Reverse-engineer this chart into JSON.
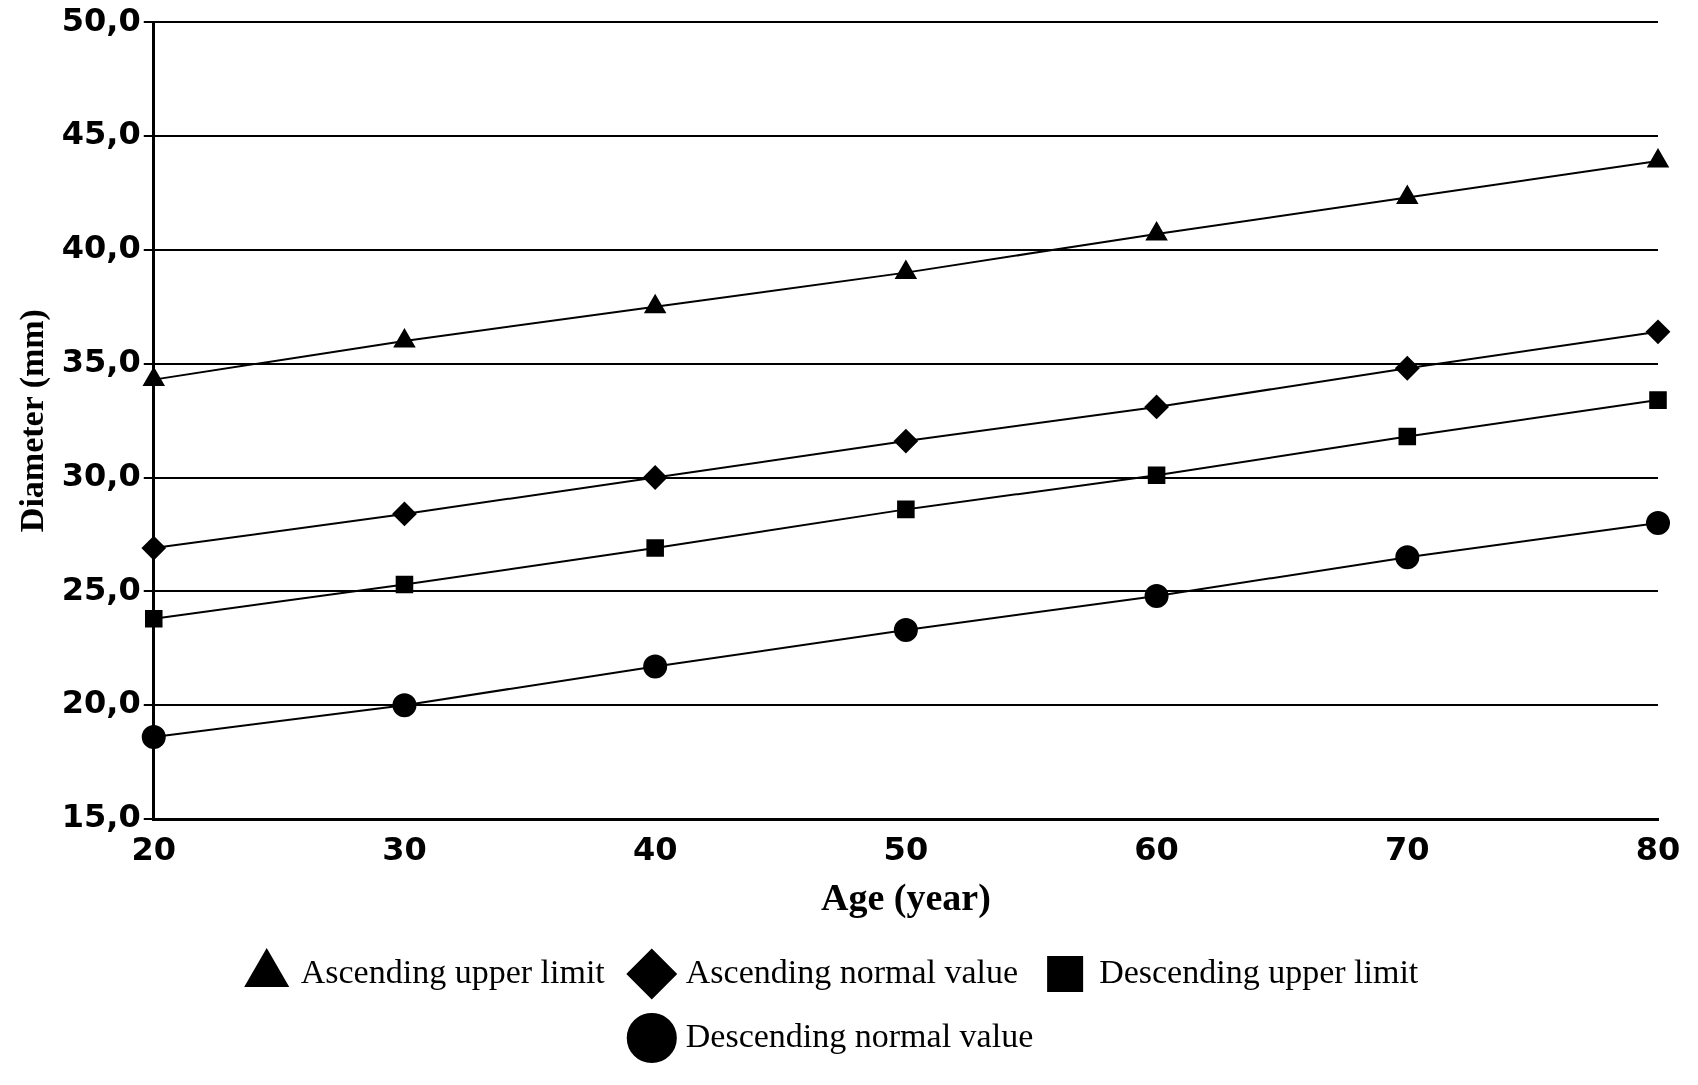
{
  "chart_data": {
    "type": "line",
    "xlabel": "Age (year)",
    "ylabel": "Diameter (mm)",
    "categories": [
      "20",
      "30",
      "40",
      "50",
      "60",
      "70",
      "80"
    ],
    "series": [
      {
        "name": "Ascending upper limit",
        "color": "#000000",
        "marker": "triangle",
        "values": [
          34.3,
          36.0,
          37.5,
          39.0,
          40.7,
          42.3,
          43.9
        ]
      },
      {
        "name": "Ascending normal value",
        "color": "#000000",
        "marker": "diamond",
        "values": [
          26.9,
          28.4,
          30.0,
          31.6,
          33.1,
          34.8,
          36.4
        ]
      },
      {
        "name": "Descending upper limit",
        "color": "#000000",
        "marker": "square",
        "values": [
          23.8,
          25.3,
          26.9,
          28.6,
          30.1,
          31.8,
          33.4
        ]
      },
      {
        "name": "Descending normal value",
        "color": "#000000",
        "marker": "circle",
        "values": [
          18.6,
          20.0,
          21.7,
          23.3,
          24.8,
          26.5,
          28.0
        ]
      }
    ],
    "ylim": [
      15,
      50
    ],
    "yticks": [
      {
        "value": 15,
        "label": "15,0"
      },
      {
        "value": 20,
        "label": "20,0"
      },
      {
        "value": 25,
        "label": "25,0"
      },
      {
        "value": 30,
        "label": "30,0"
      },
      {
        "value": 35,
        "label": "35,0"
      },
      {
        "value": 40,
        "label": "40,0"
      },
      {
        "value": 45,
        "label": "45,0"
      },
      {
        "value": 50,
        "label": "50,0"
      }
    ],
    "grid": "y",
    "legend": "bottom",
    "line_style": "solid"
  }
}
